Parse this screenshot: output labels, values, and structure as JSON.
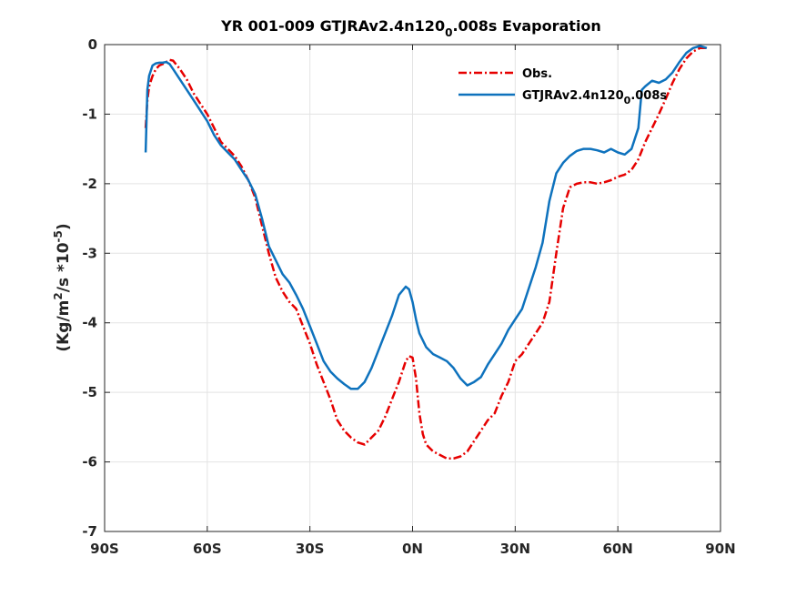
{
  "chart_data": {
    "type": "line",
    "title": "YR 001-009 GTJRAv2.4n120_0.008s Evaporation",
    "title_parts": {
      "before": "YR 001-009 GTJRAv2.4n120",
      "sub": "0",
      "after": ".008s Evaporation"
    },
    "ylabel": "(Kg/m^2/s *10^-5)",
    "ylabel_parts": {
      "p1": "(Kg/m",
      "s1": "2",
      "p2": "/s *10",
      "s2": "-5",
      "p3": ")"
    },
    "xlabel": "",
    "xlim": [
      -90,
      90
    ],
    "ylim": [
      -7,
      0
    ],
    "xticks": [
      -90,
      -60,
      -30,
      0,
      30,
      60,
      90
    ],
    "xticklabels": [
      "90S",
      "60S",
      "30S",
      "0N",
      "30N",
      "60N",
      "90N"
    ],
    "yticks": [
      0,
      -1,
      -2,
      -3,
      -4,
      -5,
      -6,
      -7
    ],
    "yticklabels": [
      "0",
      "-1",
      "-2",
      "-3",
      "-4",
      "-5",
      "-6",
      "-7"
    ],
    "grid": true,
    "legend_position": "top-right",
    "series": [
      {
        "name": "Obs.",
        "name_parts": {
          "before": "Obs.",
          "sub": "",
          "after": ""
        },
        "color": "#e60000",
        "style": "dashdot",
        "x": [
          -78,
          -77.5,
          -77,
          -76,
          -75,
          -74,
          -73,
          -72,
          -71,
          -70,
          -68,
          -66,
          -64,
          -62,
          -60,
          -58,
          -56,
          -54,
          -52,
          -50,
          -48,
          -46,
          -44,
          -42,
          -40,
          -38,
          -36,
          -34,
          -32,
          -30,
          -28,
          -26,
          -24,
          -22,
          -20,
          -18,
          -16,
          -14,
          -12,
          -10,
          -8,
          -6,
          -4,
          -2,
          -1,
          0,
          1,
          2,
          3,
          4,
          6,
          8,
          10,
          12,
          14,
          16,
          18,
          20,
          22,
          24,
          26,
          28,
          30,
          32,
          34,
          36,
          38,
          40,
          42,
          44,
          46,
          48,
          50,
          52,
          54,
          56,
          58,
          60,
          62,
          64,
          66,
          68,
          70,
          72,
          74,
          76,
          78,
          80,
          82,
          84,
          86
        ],
        "y": [
          -1.2,
          -0.8,
          -0.6,
          -0.45,
          -0.35,
          -0.3,
          -0.28,
          -0.25,
          -0.22,
          -0.23,
          -0.35,
          -0.5,
          -0.7,
          -0.85,
          -1.0,
          -1.2,
          -1.4,
          -1.5,
          -1.6,
          -1.75,
          -1.95,
          -2.2,
          -2.6,
          -3.0,
          -3.35,
          -3.55,
          -3.7,
          -3.8,
          -4.05,
          -4.3,
          -4.6,
          -4.85,
          -5.1,
          -5.4,
          -5.55,
          -5.65,
          -5.72,
          -5.75,
          -5.65,
          -5.55,
          -5.35,
          -5.1,
          -4.85,
          -4.55,
          -4.48,
          -4.5,
          -4.8,
          -5.3,
          -5.6,
          -5.75,
          -5.85,
          -5.9,
          -5.95,
          -5.95,
          -5.92,
          -5.85,
          -5.7,
          -5.55,
          -5.4,
          -5.3,
          -5.05,
          -4.85,
          -4.55,
          -4.45,
          -4.3,
          -4.15,
          -4.0,
          -3.7,
          -3.0,
          -2.35,
          -2.05,
          -2.0,
          -1.98,
          -1.98,
          -2.0,
          -1.98,
          -1.95,
          -1.9,
          -1.87,
          -1.8,
          -1.65,
          -1.4,
          -1.2,
          -1.0,
          -0.78,
          -0.55,
          -0.35,
          -0.2,
          -0.1,
          -0.05,
          -0.05
        ]
      },
      {
        "name": "GTJRAv2.4n120_0.008s",
        "name_parts": {
          "before": "GTJRAv2.4n120",
          "sub": "0",
          "after": ".008s"
        },
        "color": "#0e72bd",
        "style": "solid",
        "x": [
          -78,
          -77.5,
          -77,
          -76,
          -75,
          -74,
          -73,
          -72,
          -71,
          -70,
          -68,
          -66,
          -64,
          -62,
          -60,
          -58,
          -56,
          -54,
          -52,
          -50,
          -48,
          -46,
          -44,
          -42,
          -40,
          -38,
          -36,
          -34,
          -32,
          -30,
          -28,
          -26,
          -24,
          -22,
          -20,
          -18,
          -16,
          -14,
          -12,
          -10,
          -8,
          -6,
          -4,
          -2,
          -1,
          0,
          1,
          2,
          4,
          6,
          8,
          10,
          12,
          14,
          16,
          18,
          20,
          22,
          24,
          26,
          28,
          30,
          32,
          34,
          36,
          38,
          40,
          42,
          44,
          46,
          48,
          50,
          52,
          54,
          56,
          58,
          60,
          62,
          64,
          66,
          67,
          68,
          70,
          72,
          74,
          76,
          78,
          80,
          82,
          84,
          86
        ],
        "y": [
          -1.55,
          -0.65,
          -0.45,
          -0.3,
          -0.27,
          -0.26,
          -0.26,
          -0.25,
          -0.28,
          -0.35,
          -0.5,
          -0.65,
          -0.8,
          -0.95,
          -1.1,
          -1.3,
          -1.45,
          -1.55,
          -1.65,
          -1.8,
          -1.95,
          -2.15,
          -2.5,
          -2.9,
          -3.1,
          -3.3,
          -3.42,
          -3.6,
          -3.8,
          -4.05,
          -4.3,
          -4.55,
          -4.7,
          -4.8,
          -4.88,
          -4.95,
          -4.95,
          -4.85,
          -4.65,
          -4.4,
          -4.15,
          -3.9,
          -3.6,
          -3.48,
          -3.52,
          -3.7,
          -3.95,
          -4.15,
          -4.35,
          -4.45,
          -4.5,
          -4.55,
          -4.65,
          -4.8,
          -4.9,
          -4.85,
          -4.78,
          -4.6,
          -4.45,
          -4.3,
          -4.1,
          -3.95,
          -3.8,
          -3.5,
          -3.2,
          -2.85,
          -2.25,
          -1.85,
          -1.7,
          -1.6,
          -1.53,
          -1.5,
          -1.5,
          -1.52,
          -1.55,
          -1.5,
          -1.55,
          -1.58,
          -1.5,
          -1.2,
          -0.65,
          -0.6,
          -0.52,
          -0.55,
          -0.5,
          -0.4,
          -0.25,
          -0.12,
          -0.05,
          -0.02,
          -0.05
        ]
      }
    ]
  }
}
